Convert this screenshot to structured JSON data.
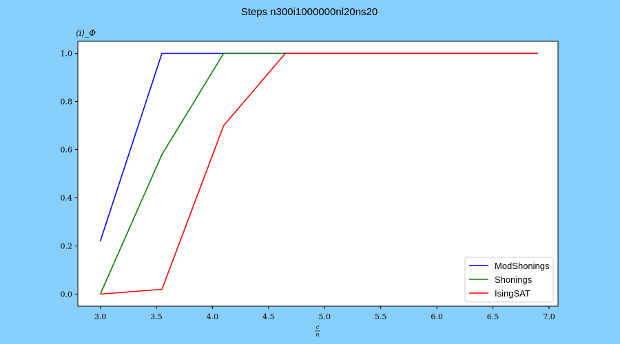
{
  "chart_data": {
    "type": "line",
    "title": "Steps n300i1000000nl20ns20",
    "xlabel_num": "c",
    "xlabel_den": "n",
    "ylabel": "⟨i⟩_Φ",
    "xlim": [
      2.8,
      7.08
    ],
    "ylim": [
      -0.05,
      1.05
    ],
    "xticks": [
      3.0,
      3.5,
      4.0,
      4.5,
      5.0,
      5.5,
      6.0,
      6.5,
      7.0
    ],
    "yticks": [
      0.0,
      0.2,
      0.4,
      0.6,
      0.8,
      1.0
    ],
    "legend_position": "lower-right",
    "series": [
      {
        "name": "ModShonings",
        "color": "#0000ff",
        "x": [
          3.0,
          3.55,
          4.1,
          4.65,
          5.2,
          5.75,
          6.3,
          6.85,
          6.9
        ],
        "y": [
          0.22,
          1.0,
          1.0,
          1.0,
          1.0,
          1.0,
          1.0,
          1.0,
          1.0
        ]
      },
      {
        "name": "Shonings",
        "color": "#008000",
        "x": [
          3.0,
          3.55,
          4.1,
          4.65,
          5.2,
          5.75,
          6.3,
          6.85,
          6.9
        ],
        "y": [
          0.0,
          0.58,
          1.0,
          1.0,
          1.0,
          1.0,
          1.0,
          1.0,
          1.0
        ]
      },
      {
        "name": "IsingSAT",
        "color": "#ff0000",
        "x": [
          3.0,
          3.55,
          4.1,
          4.65,
          5.2,
          5.75,
          6.3,
          6.85,
          6.9
        ],
        "y": [
          0.0,
          0.02,
          0.7,
          1.0,
          1.0,
          1.0,
          1.0,
          1.0,
          1.0
        ]
      }
    ]
  }
}
